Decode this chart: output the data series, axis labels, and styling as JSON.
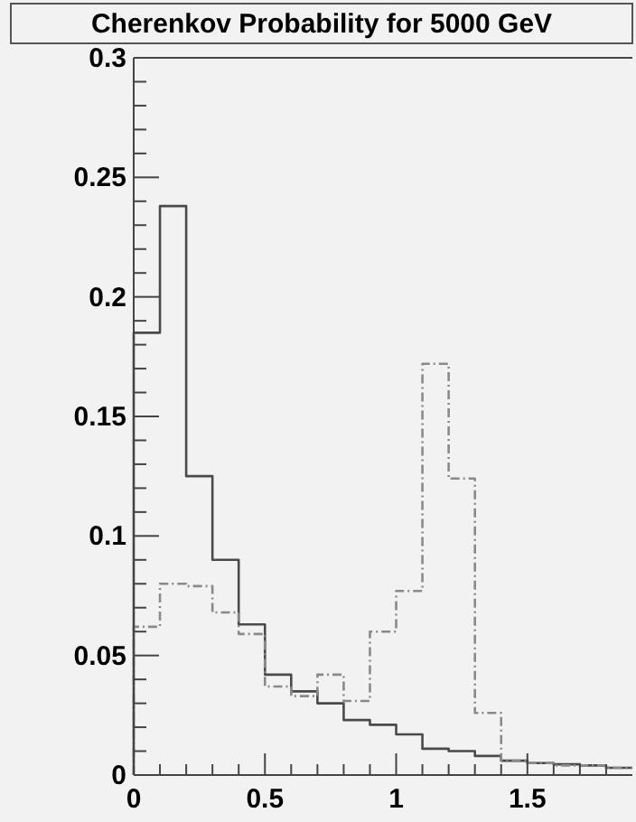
{
  "chart_data": {
    "type": "histogram",
    "title": "Cherenkov Probability for 5000 GeV",
    "bins": [
      0,
      0.1,
      0.2,
      0.3,
      0.4,
      0.5,
      0.6,
      0.7,
      0.8,
      0.9,
      1.0,
      1.1,
      1.2,
      1.3,
      1.4,
      1.5,
      1.6,
      1.7,
      1.8,
      1.9
    ],
    "series": [
      {
        "color": "#4a4a4a",
        "line_style": "solid",
        "values": [
          0.185,
          0.238,
          0.125,
          0.09,
          0.063,
          0.042,
          0.035,
          0.03,
          0.023,
          0.021,
          0.017,
          0.011,
          0.01,
          0.008,
          0.006,
          0.005,
          0.0045,
          0.004,
          0.003
        ]
      },
      {
        "color": "#8a8a8a",
        "line_style": "dashed",
        "values": [
          0.062,
          0.08,
          0.079,
          0.068,
          0.059,
          0.037,
          0.033,
          0.042,
          0.031,
          0.06,
          0.077,
          0.172,
          0.124,
          0.026,
          0.006,
          0.005,
          0.004,
          0.004,
          0.003
        ]
      }
    ],
    "xlim": [
      0,
      1.9
    ],
    "ylim": [
      0,
      0.3
    ],
    "xticks": [
      0,
      {
        "value": 0.1,
        "label": null
      },
      {
        "value": 0.2,
        "label": null
      },
      {
        "value": 0.3,
        "label": null
      },
      {
        "value": 0.4,
        "label": null
      },
      0.5,
      {
        "value": 0.6,
        "label": null
      },
      {
        "value": 0.7,
        "label": null
      },
      {
        "value": 0.8,
        "label": null
      },
      {
        "value": 0.9,
        "label": null
      },
      1,
      {
        "value": 1.1,
        "label": null
      },
      {
        "value": 1.2,
        "label": null
      },
      {
        "value": 1.3,
        "label": null
      },
      {
        "value": 1.4,
        "label": null
      },
      1.5,
      {
        "value": 1.6,
        "label": null
      },
      {
        "value": 1.7,
        "label": null
      },
      {
        "value": 1.8,
        "label": null
      }
    ],
    "yticks": [
      0,
      {
        "value": 0.01,
        "label": null
      },
      {
        "value": 0.02,
        "label": null
      },
      {
        "value": 0.03,
        "label": null
      },
      {
        "value": 0.04,
        "label": null
      },
      0.05,
      {
        "value": 0.06,
        "label": null
      },
      {
        "value": 0.07,
        "label": null
      },
      {
        "value": 0.08,
        "label": null
      },
      {
        "value": 0.09,
        "label": null
      },
      0.1,
      {
        "value": 0.11,
        "label": null
      },
      {
        "value": 0.12,
        "label": null
      },
      {
        "value": 0.13,
        "label": null
      },
      {
        "value": 0.14,
        "label": null
      },
      0.15,
      {
        "value": 0.16,
        "label": null
      },
      {
        "value": 0.17,
        "label": null
      },
      {
        "value": 0.18,
        "label": null
      },
      {
        "value": 0.19,
        "label": null
      },
      0.2,
      {
        "value": 0.21,
        "label": null
      },
      {
        "value": 0.22,
        "label": null
      },
      {
        "value": 0.23,
        "label": null
      },
      {
        "value": 0.24,
        "label": null
      },
      0.25,
      {
        "value": 0.26,
        "label": null
      },
      {
        "value": 0.27,
        "label": null
      },
      {
        "value": 0.28,
        "label": null
      },
      {
        "value": 0.29,
        "label": null
      },
      0.3
    ],
    "grid": false
  }
}
